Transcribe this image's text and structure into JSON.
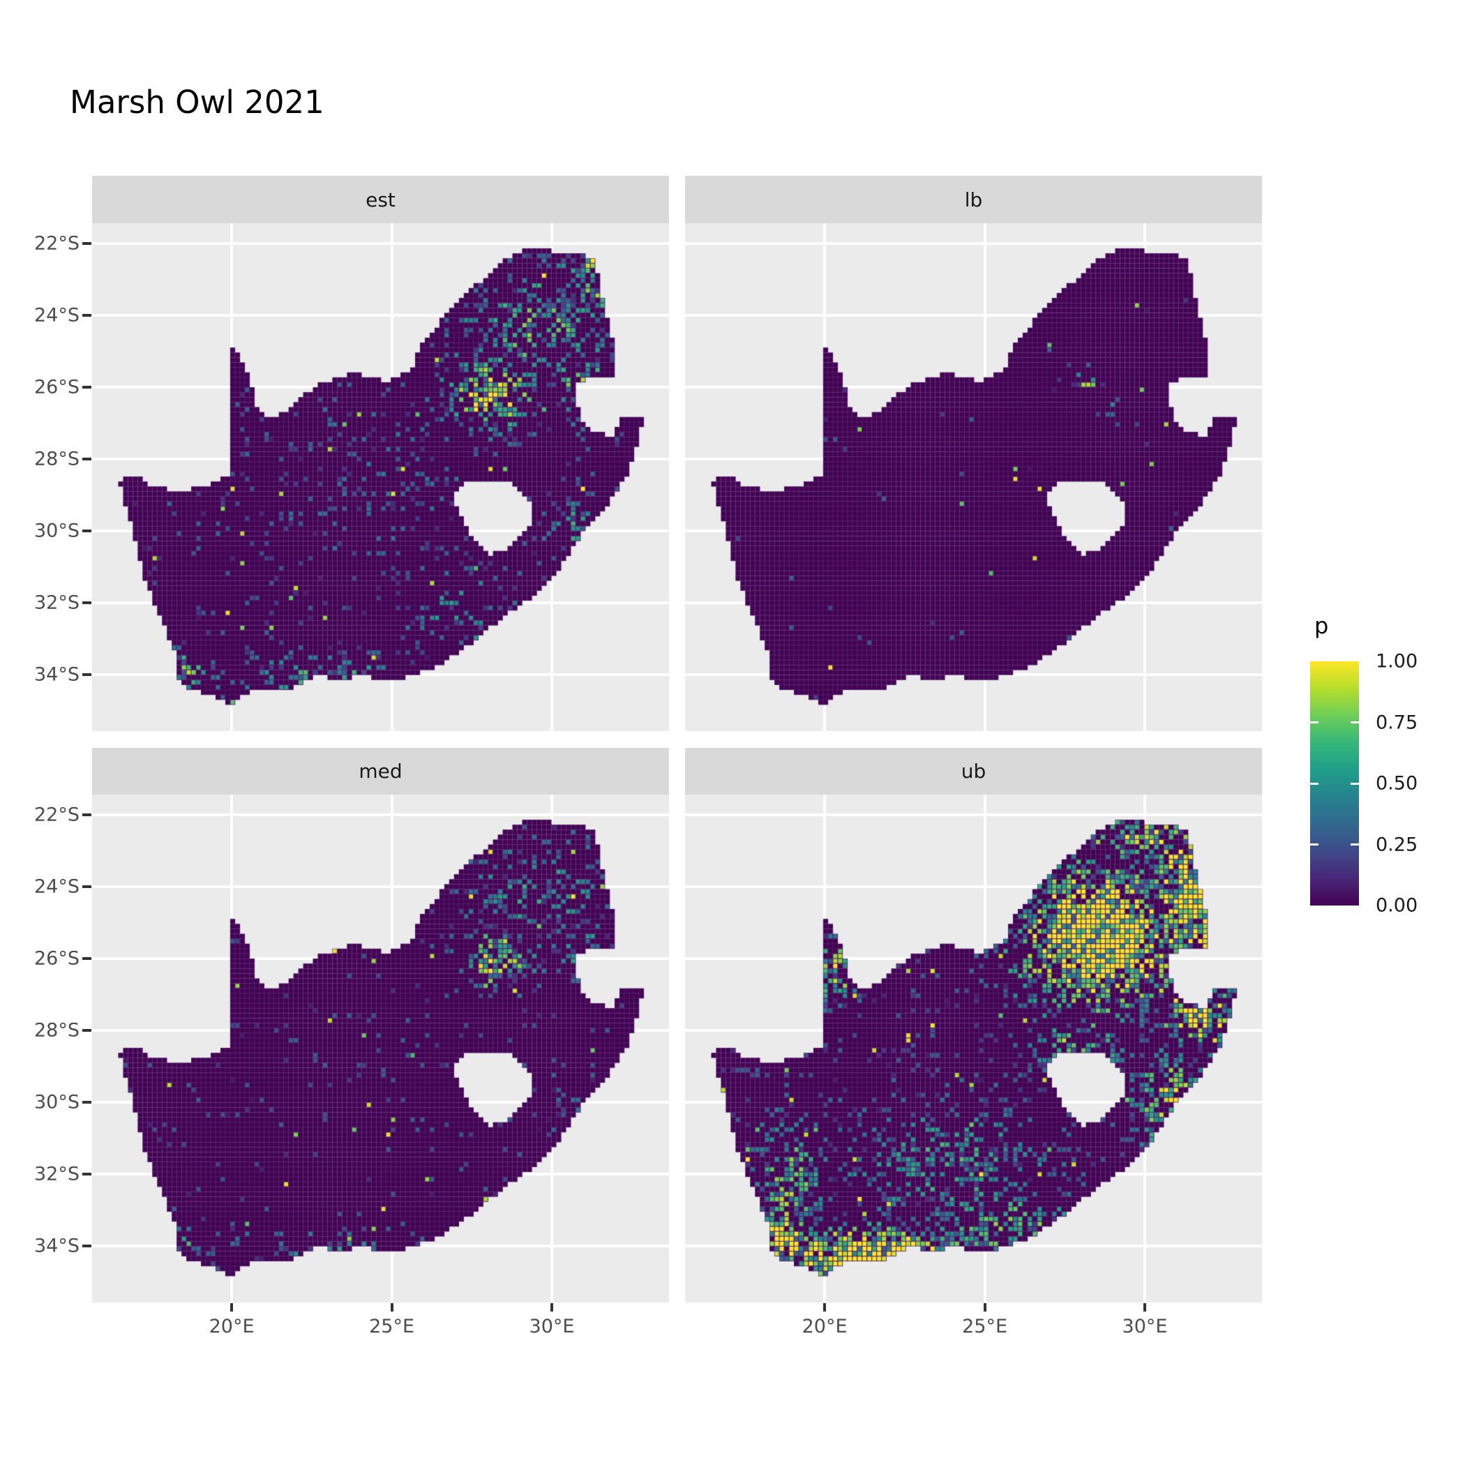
{
  "title": "Marsh Owl 2021",
  "legend": {
    "title": "p",
    "labels": [
      "1.00",
      "0.75",
      "0.50",
      "0.25",
      "0.00"
    ],
    "breaks": [
      1.0,
      0.75,
      0.5,
      0.25,
      0.0
    ]
  },
  "axes": {
    "y_labels": [
      "22°S",
      "24°S",
      "26°S",
      "28°S",
      "30°S",
      "32°S",
      "34°S"
    ],
    "y_lats": [
      -22,
      -24,
      -26,
      -28,
      -30,
      -32,
      -34
    ],
    "x_labels": [
      "20°E",
      "25°E",
      "30°E"
    ],
    "x_lons": [
      20,
      25,
      30
    ]
  },
  "colors": {
    "panel_bg": "#ebebeb",
    "strip_bg": "#d9d9d9",
    "grid": "#ffffff",
    "tile_dark": "#440154",
    "tile_grout": "#4f1e66",
    "axis_text": "#4d4d4d",
    "strip_text": "#1a1a1a",
    "tick_mark": "#333333",
    "viridis_hex": [
      "#440154",
      "#482878",
      "#3e4a89",
      "#31688e",
      "#26828e",
      "#1f9e89",
      "#35b779",
      "#6ece58",
      "#b5de2b",
      "#fde725"
    ]
  },
  "chart_data": {
    "type": "heatmap",
    "subtype": "faceted-raster-map",
    "title": "Marsh Owl 2021",
    "facet_labels": [
      "est",
      "lb",
      "med",
      "ub"
    ],
    "value_name": "p",
    "value_range": [
      0.0,
      1.0
    ],
    "legend_breaks": [
      0.0,
      0.25,
      0.5,
      0.75,
      1.0
    ],
    "axis_range": {
      "lon_min": 15.64,
      "lon_max": 33.66,
      "lat_min": -35.57,
      "lat_max": -21.44
    },
    "x_ticks_deg": [
      20,
      25,
      30
    ],
    "y_ticks_deg": [
      -22,
      -24,
      -26,
      -28,
      -30,
      -32,
      -34
    ],
    "grid": "major-only-white",
    "legend_position": "right",
    "cell_deg": {
      "lon": 0.152,
      "lat": 0.138
    },
    "south_africa_ring": [
      [
        16.45,
        -28.57
      ],
      [
        17.1,
        -28.5
      ],
      [
        17.45,
        -28.7
      ],
      [
        18.1,
        -28.87
      ],
      [
        18.75,
        -28.84
      ],
      [
        19.35,
        -28.72
      ],
      [
        19.7,
        -28.5
      ],
      [
        19.98,
        -28.4
      ],
      [
        19.98,
        -26.9
      ],
      [
        19.98,
        -24.76
      ],
      [
        20.35,
        -25.3
      ],
      [
        20.6,
        -25.75
      ],
      [
        20.68,
        -26.45
      ],
      [
        21.15,
        -26.87
      ],
      [
        21.7,
        -26.66
      ],
      [
        22.05,
        -26.38
      ],
      [
        22.65,
        -25.95
      ],
      [
        23.25,
        -25.76
      ],
      [
        23.9,
        -25.6
      ],
      [
        24.4,
        -25.76
      ],
      [
        24.85,
        -25.82
      ],
      [
        25.35,
        -25.6
      ],
      [
        25.62,
        -25.46
      ],
      [
        25.92,
        -24.74
      ],
      [
        26.4,
        -24.3
      ],
      [
        26.85,
        -23.85
      ],
      [
        27.35,
        -23.4
      ],
      [
        27.95,
        -22.9
      ],
      [
        28.35,
        -22.57
      ],
      [
        28.85,
        -22.3
      ],
      [
        29.25,
        -22.14
      ],
      [
        29.9,
        -22.19
      ],
      [
        30.45,
        -22.3
      ],
      [
        31.1,
        -22.35
      ],
      [
        31.3,
        -22.4
      ],
      [
        31.5,
        -23.15
      ],
      [
        31.65,
        -23.8
      ],
      [
        31.85,
        -24.4
      ],
      [
        31.97,
        -25.1
      ],
      [
        31.92,
        -25.77
      ],
      [
        31.35,
        -25.72
      ],
      [
        30.82,
        -25.85
      ],
      [
        30.78,
        -26.4
      ],
      [
        30.95,
        -26.95
      ],
      [
        31.3,
        -27.2
      ],
      [
        31.75,
        -27.32
      ],
      [
        31.97,
        -27.31
      ],
      [
        32.12,
        -26.85
      ],
      [
        32.55,
        -26.85
      ],
      [
        32.89,
        -26.86
      ],
      [
        32.62,
        -27.75
      ],
      [
        32.35,
        -28.45
      ],
      [
        31.75,
        -29.25
      ],
      [
        31.05,
        -29.95
      ],
      [
        30.35,
        -30.9
      ],
      [
        29.55,
        -31.75
      ],
      [
        28.6,
        -32.3
      ],
      [
        27.6,
        -33.05
      ],
      [
        26.55,
        -33.72
      ],
      [
        25.8,
        -33.95
      ],
      [
        25.65,
        -34.05
      ],
      [
        24.9,
        -34.15
      ],
      [
        24.1,
        -34.05
      ],
      [
        23.35,
        -34.1
      ],
      [
        22.6,
        -34.05
      ],
      [
        21.8,
        -34.4
      ],
      [
        21.0,
        -34.4
      ],
      [
        20.45,
        -34.5
      ],
      [
        20.0,
        -34.82
      ],
      [
        19.35,
        -34.6
      ],
      [
        18.85,
        -34.4
      ],
      [
        18.45,
        -34.3
      ],
      [
        18.35,
        -34.1
      ],
      [
        18.3,
        -33.6
      ],
      [
        17.95,
        -32.75
      ],
      [
        17.55,
        -32.0
      ],
      [
        17.2,
        -31.1
      ],
      [
        16.95,
        -30.2
      ],
      [
        16.7,
        -29.3
      ]
    ],
    "lesotho_hole_ring": [
      [
        26.99,
        -28.95
      ],
      [
        27.35,
        -28.65
      ],
      [
        27.75,
        -28.58
      ],
      [
        28.2,
        -28.62
      ],
      [
        28.65,
        -28.6
      ],
      [
        29.1,
        -28.92
      ],
      [
        29.35,
        -29.25
      ],
      [
        29.45,
        -29.6
      ],
      [
        29.2,
        -29.95
      ],
      [
        28.85,
        -30.3
      ],
      [
        28.4,
        -30.6
      ],
      [
        28.05,
        -30.65
      ],
      [
        27.75,
        -30.45
      ],
      [
        27.45,
        -30.1
      ],
      [
        27.2,
        -29.7
      ],
      [
        27.0,
        -29.3
      ]
    ],
    "facets": [
      {
        "label": "est",
        "seed": 101,
        "base_speckle": 0.05,
        "isolated_bright": 0.007,
        "hotspots": [
          [
            28.1,
            -26.15,
            1.25,
            0.95,
            0.95
          ],
          [
            29.6,
            -24.4,
            2.3,
            1.7,
            0.5
          ],
          [
            31.1,
            -23.3,
            1.0,
            1.2,
            0.55
          ],
          [
            31.2,
            -22.5,
            0.45,
            0.3,
            0.9
          ],
          [
            30.9,
            -25.9,
            0.9,
            0.9,
            0.55
          ],
          [
            18.55,
            -33.9,
            0.55,
            0.45,
            0.6
          ],
          [
            22.8,
            -34.05,
            2.6,
            0.55,
            0.4
          ],
          [
            27.3,
            -32.3,
            1.6,
            1.1,
            0.3
          ],
          [
            30.8,
            -29.9,
            0.9,
            0.9,
            0.4
          ],
          [
            24.5,
            -28.5,
            4.0,
            2.6,
            0.12
          ]
        ]
      },
      {
        "label": "lb",
        "seed": 202,
        "base_speckle": 0.006,
        "isolated_bright": 0.0025,
        "hotspots": [
          [
            28.25,
            -25.95,
            0.55,
            0.45,
            0.55
          ],
          [
            28.9,
            -26.6,
            0.5,
            0.4,
            0.3
          ],
          [
            31.1,
            -29.9,
            0.3,
            0.3,
            0.25
          ]
        ]
      },
      {
        "label": "med",
        "seed": 303,
        "base_speckle": 0.035,
        "isolated_bright": 0.005,
        "hotspots": [
          [
            28.25,
            -26.0,
            1.05,
            0.85,
            0.8
          ],
          [
            29.6,
            -24.2,
            2.1,
            1.6,
            0.33
          ],
          [
            31.0,
            -25.8,
            0.9,
            0.9,
            0.35
          ],
          [
            18.55,
            -33.9,
            0.5,
            0.4,
            0.4
          ],
          [
            22.8,
            -34.1,
            2.4,
            0.5,
            0.28
          ],
          [
            30.8,
            -29.9,
            0.8,
            0.8,
            0.28
          ]
        ]
      },
      {
        "label": "ub",
        "seed": 404,
        "base_speckle": 0.075,
        "isolated_bright": 0.012,
        "hotspots": [
          [
            28.6,
            -25.4,
            2.4,
            1.9,
            1.35
          ],
          [
            31.4,
            -24.3,
            1.2,
            2.0,
            1.15
          ],
          [
            31.8,
            -27.5,
            1.0,
            1.1,
            0.95
          ],
          [
            30.0,
            -22.6,
            1.5,
            0.6,
            0.8
          ],
          [
            21.6,
            -34.25,
            3.0,
            0.75,
            1.2
          ],
          [
            18.7,
            -33.8,
            0.9,
            0.9,
            1.1
          ],
          [
            18.9,
            -32.3,
            1.0,
            1.6,
            0.6
          ],
          [
            30.8,
            -30.0,
            1.1,
            1.3,
            0.75
          ],
          [
            25.6,
            -33.5,
            2.2,
            1.0,
            0.55
          ],
          [
            24.0,
            -31.8,
            3.2,
            1.8,
            0.4
          ],
          [
            20.3,
            -26.3,
            0.7,
            0.9,
            0.7
          ],
          [
            28.0,
            -28.3,
            1.6,
            1.2,
            0.45
          ]
        ]
      }
    ],
    "viridis_rgb": [
      [
        68,
        1,
        84
      ],
      [
        72,
        40,
        120
      ],
      [
        62,
        74,
        137
      ],
      [
        49,
        104,
        142
      ],
      [
        38,
        130,
        142
      ],
      [
        31,
        158,
        137
      ],
      [
        53,
        183,
        121
      ],
      [
        110,
        206,
        88
      ],
      [
        181,
        222,
        43
      ],
      [
        253,
        231,
        37
      ]
    ]
  }
}
